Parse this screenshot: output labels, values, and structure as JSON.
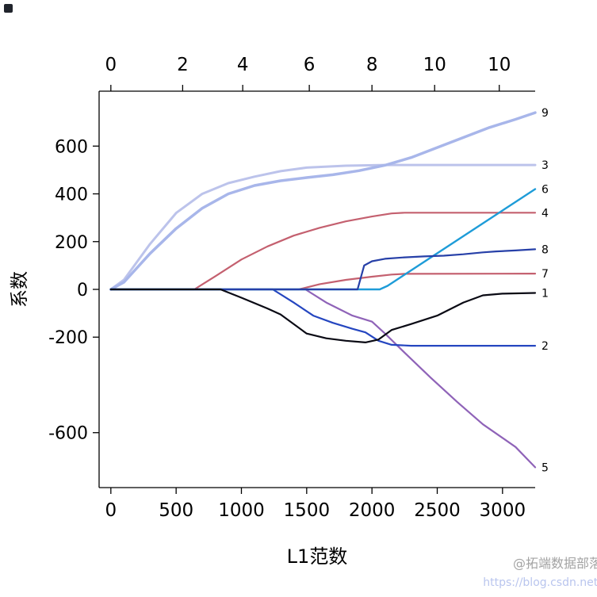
{
  "watermark": {
    "line1": "@拓端数据部落",
    "line2": "https://blog.csdn.net/"
  },
  "chart_data": {
    "type": "line",
    "title": "",
    "xlabel": "L1范数",
    "ylabel": "系数",
    "xlim": [
      -90,
      3250
    ],
    "ylim": [
      -830,
      830
    ],
    "grid": false,
    "legend": "right-edge-numeric-labels",
    "axis_color": "#000000",
    "x_ticks": [
      0,
      500,
      1000,
      1500,
      2000,
      2500,
      3000
    ],
    "y_ticks": [
      600,
      400,
      200,
      0,
      -200,
      -600
    ],
    "top_axis": {
      "ticks": [
        0,
        550,
        1010,
        1520,
        2000,
        2480,
        2975
      ],
      "labels": [
        "0",
        "2",
        "4",
        "6",
        "8",
        "10",
        "10"
      ]
    },
    "series": [
      {
        "name": "3",
        "color": "#bcc3eb",
        "width": 3,
        "points": [
          [
            0,
            0
          ],
          [
            100,
            40
          ],
          [
            300,
            190
          ],
          [
            500,
            320
          ],
          [
            700,
            400
          ],
          [
            900,
            445
          ],
          [
            1100,
            472
          ],
          [
            1300,
            495
          ],
          [
            1500,
            510
          ],
          [
            1800,
            518
          ],
          [
            2100,
            521
          ],
          [
            3250,
            521
          ]
        ]
      },
      {
        "name": "9",
        "color": "#a8b6ea",
        "width": 3.5,
        "points": [
          [
            0,
            0
          ],
          [
            100,
            30
          ],
          [
            300,
            150
          ],
          [
            500,
            255
          ],
          [
            700,
            340
          ],
          [
            900,
            400
          ],
          [
            1100,
            435
          ],
          [
            1300,
            455
          ],
          [
            1500,
            468
          ],
          [
            1700,
            480
          ],
          [
            1900,
            497
          ],
          [
            2100,
            520
          ],
          [
            2300,
            552
          ],
          [
            2600,
            615
          ],
          [
            2900,
            678
          ],
          [
            3100,
            712
          ],
          [
            3250,
            740
          ]
        ]
      },
      {
        "name": "4",
        "color": "#c4606f",
        "width": 2.2,
        "points": [
          [
            0,
            0
          ],
          [
            640,
            0
          ],
          [
            800,
            55
          ],
          [
            1000,
            125
          ],
          [
            1200,
            180
          ],
          [
            1400,
            225
          ],
          [
            1600,
            258
          ],
          [
            1800,
            285
          ],
          [
            2000,
            305
          ],
          [
            2150,
            318
          ],
          [
            2250,
            321
          ],
          [
            3250,
            321
          ]
        ]
      },
      {
        "name": "7",
        "color": "#c4606f",
        "width": 2.2,
        "points": [
          [
            0,
            0
          ],
          [
            1440,
            0
          ],
          [
            1600,
            22
          ],
          [
            1800,
            40
          ],
          [
            2000,
            53
          ],
          [
            2150,
            62
          ],
          [
            2250,
            65
          ],
          [
            3250,
            66
          ]
        ]
      },
      {
        "name": "5",
        "color": "#8f63b8",
        "width": 2.2,
        "points": [
          [
            0,
            0
          ],
          [
            1490,
            0
          ],
          [
            1650,
            -55
          ],
          [
            1850,
            -110
          ],
          [
            2000,
            -135
          ],
          [
            2100,
            -185
          ],
          [
            2250,
            -265
          ],
          [
            2450,
            -370
          ],
          [
            2650,
            -470
          ],
          [
            2850,
            -565
          ],
          [
            3000,
            -622
          ],
          [
            3100,
            -660
          ],
          [
            3250,
            -745
          ]
        ]
      },
      {
        "name": "2",
        "color": "#2546c0",
        "width": 2.2,
        "points": [
          [
            0,
            0
          ],
          [
            1240,
            0
          ],
          [
            1400,
            -55
          ],
          [
            1550,
            -110
          ],
          [
            1700,
            -140
          ],
          [
            1850,
            -165
          ],
          [
            1950,
            -180
          ],
          [
            2050,
            -215
          ],
          [
            2150,
            -232
          ],
          [
            2300,
            -236
          ],
          [
            3250,
            -236
          ]
        ]
      },
      {
        "name": "6",
        "color": "#1e9cd8",
        "width": 2.4,
        "points": [
          [
            0,
            0
          ],
          [
            2060,
            0
          ],
          [
            2120,
            15
          ],
          [
            3250,
            420
          ]
        ]
      },
      {
        "name": "8",
        "color": "#2740a8",
        "width": 2.2,
        "points": [
          [
            0,
            0
          ],
          [
            1890,
            0
          ],
          [
            1940,
            100
          ],
          [
            2000,
            118
          ],
          [
            2100,
            128
          ],
          [
            2250,
            134
          ],
          [
            2400,
            138
          ],
          [
            2550,
            141
          ],
          [
            2700,
            147
          ],
          [
            2850,
            155
          ],
          [
            2950,
            159
          ],
          [
            3100,
            163
          ],
          [
            3250,
            168
          ]
        ]
      },
      {
        "name": "1",
        "color": "#0a0a14",
        "width": 2.2,
        "points": [
          [
            0,
            0
          ],
          [
            840,
            0
          ],
          [
            1000,
            -35
          ],
          [
            1200,
            -80
          ],
          [
            1300,
            -105
          ],
          [
            1500,
            -185
          ],
          [
            1650,
            -205
          ],
          [
            1800,
            -215
          ],
          [
            1950,
            -222
          ],
          [
            2050,
            -210
          ],
          [
            2150,
            -170
          ],
          [
            2300,
            -145
          ],
          [
            2500,
            -110
          ],
          [
            2700,
            -55
          ],
          [
            2850,
            -25
          ],
          [
            3000,
            -18
          ],
          [
            3250,
            -15
          ]
        ]
      }
    ]
  }
}
